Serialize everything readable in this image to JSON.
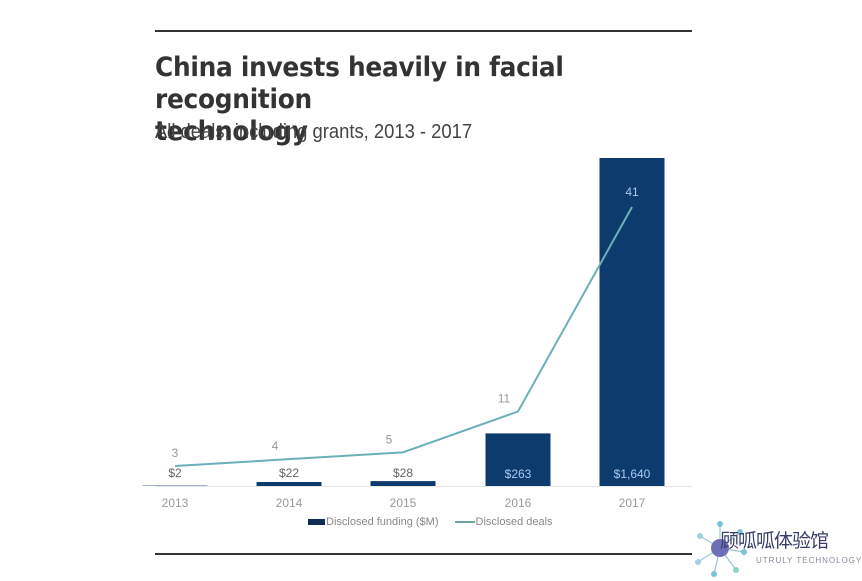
{
  "header": {
    "title_line1": "China invests heavily in facial recognition",
    "title_line2": "technology",
    "subtitle": "All deals, including grants, 2013 - 2017"
  },
  "legend": {
    "funding_label": "Disclosed funding ($M)",
    "deals_label": "Disclosed deals"
  },
  "watermark": {
    "text": "顾呱呱体验馆",
    "sub": "UTRULY TECHNOLOGY"
  },
  "colors": {
    "bar": "#0d3b6e",
    "line": "#6ab0b8",
    "title": "#333333"
  },
  "chart_data": {
    "type": "bar",
    "title": "China invests heavily in facial recognition technology",
    "subtitle": "All deals, including grants, 2013 - 2017",
    "categories": [
      "2013",
      "2014",
      "2015",
      "2016",
      "2017"
    ],
    "series": [
      {
        "name": "Disclosed funding ($M)",
        "type": "bar",
        "values": [
          2,
          22,
          28,
          263,
          1640
        ],
        "labels": [
          "$2",
          "$22",
          "$28",
          "$263",
          "$1,640"
        ]
      },
      {
        "name": "Disclosed deals",
        "type": "line",
        "values": [
          3,
          4,
          5,
          11,
          41
        ],
        "labels": [
          "3",
          "4",
          "5",
          "11",
          "41"
        ]
      }
    ],
    "xlabel": "",
    "ylabel": "",
    "grid": false,
    "legend_position": "bottom"
  }
}
